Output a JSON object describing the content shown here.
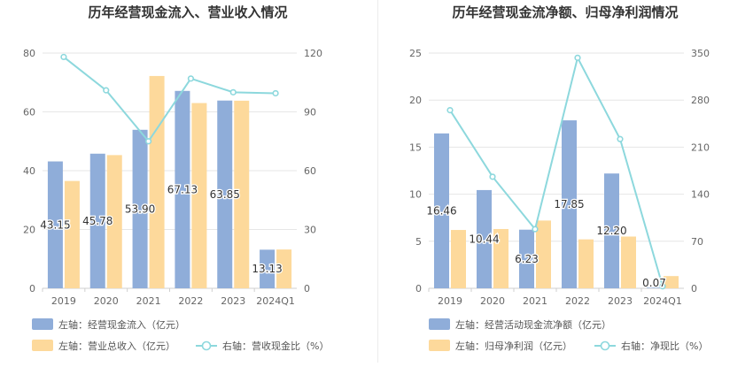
{
  "colors": {
    "bar_primary": "#8fadd9",
    "bar_secondary": "#fdd99b",
    "line": "#8dd8dd",
    "grid": "#e6e6e6",
    "axis_text": "#666666",
    "title": "#333333",
    "legend_text": "#555555"
  },
  "chart_data": [
    {
      "type": "bar",
      "title": "历年经营现金流入、营业收入情况",
      "categories": [
        "2019",
        "2020",
        "2021",
        "2022",
        "2023",
        "2024Q1"
      ],
      "left_axis": {
        "ticks": [
          "0",
          "20",
          "40",
          "60",
          "80"
        ],
        "ylim": [
          0,
          80
        ]
      },
      "right_axis": {
        "ticks": [
          "0",
          "30",
          "60",
          "90",
          "120"
        ],
        "ylim": [
          0,
          120
        ]
      },
      "series": [
        {
          "name": "左轴：经营现金流入（亿元）",
          "axis": "left",
          "kind": "bar",
          "values": [
            43.15,
            45.78,
            53.9,
            67.13,
            63.85,
            13.13
          ],
          "labels": [
            "43.15",
            "45.78",
            "53.90",
            "67.13",
            "63.85",
            "13.13"
          ]
        },
        {
          "name": "左轴：营业总收入（亿元）",
          "axis": "left",
          "kind": "bar",
          "values": [
            36.5,
            45.3,
            72.2,
            63.0,
            63.8,
            13.2
          ]
        },
        {
          "name": "右轴：营收现金比（%）",
          "axis": "right",
          "kind": "line",
          "values": [
            118,
            101,
            75,
            107,
            100,
            99.5
          ]
        }
      ]
    },
    {
      "type": "bar",
      "title": "历年经营现金流净额、归母净利润情况",
      "categories": [
        "2019",
        "2020",
        "2021",
        "2022",
        "2023",
        "2024Q1"
      ],
      "left_axis": {
        "ticks": [
          "0",
          "5",
          "10",
          "15",
          "20",
          "25"
        ],
        "ylim": [
          0,
          25
        ]
      },
      "right_axis": {
        "ticks": [
          "0",
          "70",
          "140",
          "210",
          "280",
          "350"
        ],
        "ylim": [
          0,
          350
        ]
      },
      "series": [
        {
          "name": "左轴：经营活动现金流净额（亿元）",
          "axis": "left",
          "kind": "bar",
          "values": [
            16.46,
            10.44,
            6.23,
            17.85,
            12.2,
            0.07
          ],
          "labels": [
            "16.46",
            "10.44",
            "6.23",
            "17.85",
            "12.20",
            "0.07"
          ]
        },
        {
          "name": "左轴：归母净利润（亿元）",
          "axis": "left",
          "kind": "bar",
          "values": [
            6.2,
            6.3,
            7.2,
            5.2,
            5.5,
            1.3
          ]
        },
        {
          "name": "右轴：净现比（%）",
          "axis": "right",
          "kind": "line",
          "values": [
            265,
            166,
            88,
            343,
            222,
            3
          ]
        }
      ]
    }
  ]
}
